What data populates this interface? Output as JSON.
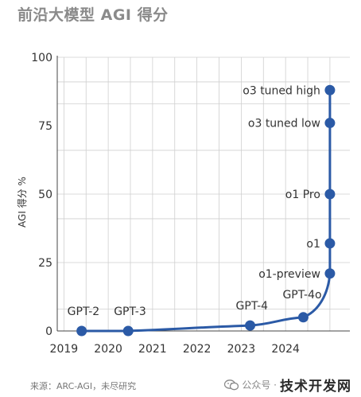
{
  "title": "前沿大模型 AGI 得分",
  "source": "来源：ARC-AGI，未尽研究",
  "watermark": {
    "prefix": "公众号 · ",
    "brand": "技术开发网",
    "icon": "wechat-icon"
  },
  "colors": {
    "line": "#2b5aa6",
    "grid": "#cfcfcf",
    "text": "#333333",
    "title": "#8a8a8a"
  },
  "chart_data": {
    "type": "line",
    "title": "前沿大模型 AGI 得分",
    "xlabel": "",
    "ylabel": "AGI 得分 %",
    "xlim": [
      2018.85,
      2025.45
    ],
    "ylim": [
      0,
      100
    ],
    "x_ticks": [
      2019,
      2020,
      2021,
      2022,
      2023,
      2024
    ],
    "x_tick_labels": [
      "2019",
      "2020",
      "2021",
      "2022",
      "2023",
      "2024"
    ],
    "y_ticks": [
      0,
      25,
      50,
      75,
      100
    ],
    "y_tick_labels": [
      "0",
      "25",
      "50",
      "75",
      "100"
    ],
    "grid": "vertical and horizontal",
    "series": [
      {
        "points": [
          {
            "label": "GPT-2",
            "x": 2019.4,
            "y": 0
          },
          {
            "label": "GPT-3",
            "x": 2020.45,
            "y": 0
          },
          {
            "label": "GPT-4",
            "x": 2023.2,
            "y": 2
          },
          {
            "label": "GPT-4o",
            "x": 2024.4,
            "y": 5
          },
          {
            "label": "o1-preview",
            "x": 2025.0,
            "y": 21
          },
          {
            "label": "o1",
            "x": 2025.0,
            "y": 32
          },
          {
            "label": "o1 Pro",
            "x": 2025.0,
            "y": 50
          },
          {
            "label": "o3 tuned low",
            "x": 2025.0,
            "y": 76
          },
          {
            "label": "o3 tuned high",
            "x": 2025.0,
            "y": 88
          }
        ]
      }
    ]
  }
}
